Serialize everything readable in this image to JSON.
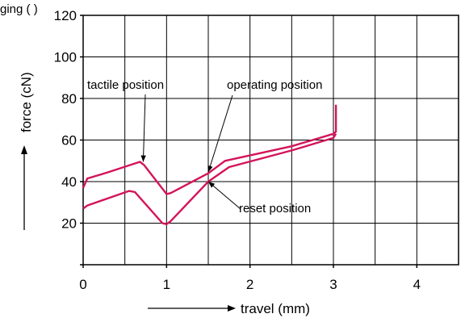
{
  "caption": "ging                                                    (    )",
  "chart_data": {
    "type": "line",
    "title": "",
    "xlabel": "travel (mm)",
    "ylabel": "force (cN)",
    "xlim": [
      0,
      4.5
    ],
    "ylim": [
      0,
      120
    ],
    "x_ticks": [
      0,
      1,
      2,
      3,
      4
    ],
    "y_ticks": [
      20,
      40,
      60,
      80,
      100,
      120
    ],
    "grid": true,
    "series_color": "#d4145a",
    "series": [
      {
        "values": [
          [
            0,
            37
          ],
          [
            0.05,
            41.5
          ],
          [
            0.3,
            44.5
          ],
          [
            0.68,
            49.5
          ],
          [
            0.73,
            48
          ],
          [
            1.0,
            34
          ],
          [
            1.05,
            34.5
          ],
          [
            1.5,
            44
          ],
          [
            1.7,
            50
          ],
          [
            2.5,
            57
          ],
          [
            3.0,
            63
          ],
          [
            3.03,
            64
          ],
          [
            3.03,
            77
          ]
        ]
      },
      {
        "values": [
          [
            0,
            27
          ],
          [
            0.05,
            28.5
          ],
          [
            0.3,
            32
          ],
          [
            0.55,
            35.5
          ],
          [
            0.62,
            35
          ],
          [
            0.95,
            20
          ],
          [
            1.0,
            19.5
          ],
          [
            1.05,
            21
          ],
          [
            1.5,
            40
          ],
          [
            1.75,
            47
          ],
          [
            2.5,
            55
          ],
          [
            3.0,
            61
          ],
          [
            3.03,
            63
          ]
        ]
      }
    ],
    "annotations": [
      {
        "text": "tactile position",
        "point": [
          0.72,
          49.5
        ]
      },
      {
        "text": "operating position",
        "point": [
          1.5,
          44.5
        ]
      },
      {
        "text": "reset position",
        "point": [
          1.5,
          40
        ]
      }
    ]
  }
}
